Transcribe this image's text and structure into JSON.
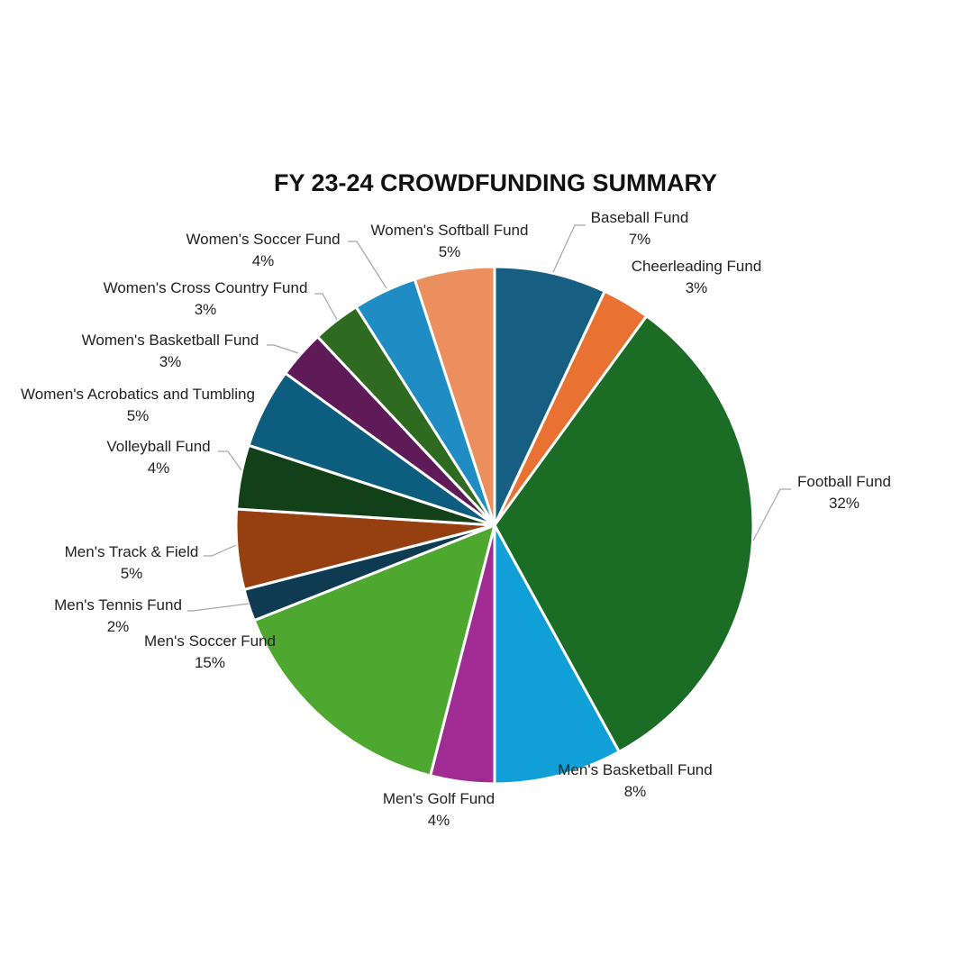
{
  "chart_data": {
    "type": "pie",
    "title": "FY 23-24 CROWDFUNDING SUMMARY",
    "start": "12 o'clock, clockwise",
    "slices": [
      {
        "label": "Baseball Fund",
        "value": 7,
        "pct_label": "7%",
        "color": "#175f82"
      },
      {
        "label": "Cheerleading Fund",
        "value": 3,
        "pct_label": "3%",
        "color": "#e97132"
      },
      {
        "label": "Football Fund",
        "value": 32,
        "pct_label": "32%",
        "color": "#1b6d25"
      },
      {
        "label": "Men's Basketball Fund",
        "value": 8,
        "pct_label": "8%",
        "color": "#10a0d7"
      },
      {
        "label": "Men's Golf Fund",
        "value": 4,
        "pct_label": "4%",
        "color": "#a02b93"
      },
      {
        "label": "Men's Soccer Fund",
        "value": 15,
        "pct_label": "15%",
        "color": "#4ea72e"
      },
      {
        "label": "Men's Tennis Fund",
        "value": 2,
        "pct_label": "2%",
        "color": "#0e3a52"
      },
      {
        "label": "Men's Track & Field",
        "value": 5,
        "pct_label": "5%",
        "color": "#963f10"
      },
      {
        "label": "Volleyball Fund",
        "value": 4,
        "pct_label": "4%",
        "color": "#124119"
      },
      {
        "label": "Women's Acrobatics and Tumbling",
        "value": 5,
        "pct_label": "5%",
        "color": "#0d5d7f"
      },
      {
        "label": "Women's Basketball Fund",
        "value": 3,
        "pct_label": "3%",
        "color": "#5f1a58"
      },
      {
        "label": "Women's Cross Country Fund",
        "value": 3,
        "pct_label": "3%",
        "color": "#2e6a1f"
      },
      {
        "label": "Women's Soccer Fund",
        "value": 4,
        "pct_label": "4%",
        "color": "#1f8cc4"
      },
      {
        "label": "Women's Softball Fund",
        "value": 5,
        "pct_label": "5%",
        "color": "#ec8f5e"
      }
    ]
  }
}
